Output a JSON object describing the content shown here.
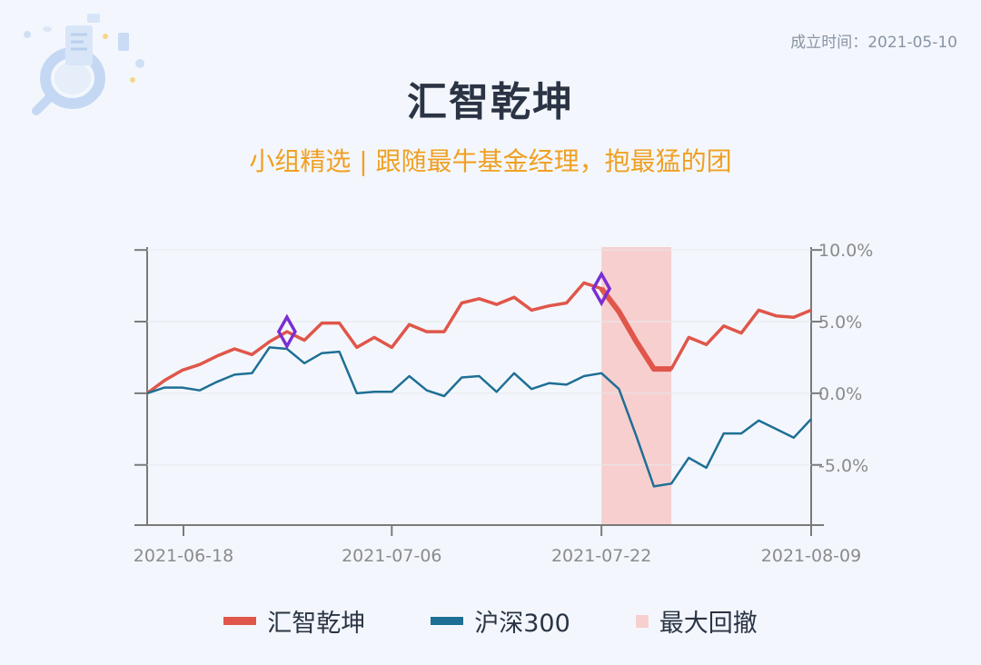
{
  "header": {
    "established": "成立时间：2021-05-10",
    "title": "汇智乾坤",
    "subtitle": "小组精选 | 跟随最牛基金经理，抱最猛的团"
  },
  "colors": {
    "fund": "#e0564a",
    "index": "#1f6f95",
    "drawdown": "#f8cfcf",
    "marker": "#7b2ed1",
    "axis": "#7a7a7a"
  },
  "chart_data": {
    "type": "line",
    "x_ticks": [
      "2021-06-18",
      "2021-07-06",
      "2021-07-22",
      "2021-08-09"
    ],
    "y_ticks": [
      "10.0%",
      "5.0%",
      "0.0%",
      "-5.0%"
    ],
    "y_unit": "%",
    "ylim": [
      -9.2,
      10.2
    ],
    "legend_position": "bottom",
    "grid": false,
    "series": [
      {
        "name": "汇智乾坤",
        "values": [
          0.0,
          0.9,
          1.6,
          2.0,
          2.6,
          3.1,
          2.7,
          3.6,
          4.3,
          3.7,
          4.9,
          4.9,
          3.2,
          3.9,
          3.2,
          4.8,
          4.3,
          4.3,
          6.3,
          6.6,
          6.2,
          6.7,
          5.8,
          6.1,
          6.3,
          7.7,
          7.3,
          5.7,
          3.6,
          1.7,
          1.7,
          3.9,
          3.4,
          4.7,
          4.2,
          5.8,
          5.4,
          5.3,
          5.8
        ]
      },
      {
        "name": "沪深300",
        "values": [
          0.0,
          0.4,
          0.4,
          0.2,
          0.8,
          1.3,
          1.4,
          3.2,
          3.1,
          2.1,
          2.8,
          2.9,
          0.0,
          0.1,
          0.1,
          1.2,
          0.2,
          -0.2,
          1.1,
          1.2,
          0.1,
          1.4,
          0.3,
          0.7,
          0.6,
          1.2,
          1.4,
          0.3,
          -3.0,
          -6.5,
          -6.3,
          -4.5,
          -5.2,
          -2.8,
          -2.8,
          -1.9,
          -2.5,
          -3.1,
          -1.8
        ]
      }
    ],
    "max_drawdown": {
      "name": "最大回撤",
      "start_index": 26,
      "end_index": 30
    },
    "markers": [
      {
        "series": "汇智乾坤",
        "index": 8
      },
      {
        "series": "汇智乾坤",
        "index": 26
      }
    ]
  }
}
